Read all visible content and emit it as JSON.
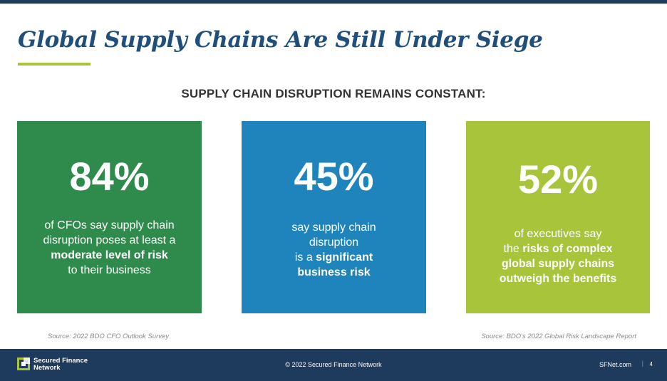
{
  "header": {
    "title": "Global Supply Chains Are Still Under Siege",
    "subtitle": "SUPPLY CHAIN DISRUPTION REMAINS CONSTANT:"
  },
  "cards": [
    {
      "stat": "84%",
      "line1": "of CFOs say supply chain",
      "line2": "disruption poses at least a",
      "line3_bold": "moderate level of risk",
      "line4": "to their business",
      "color": "#2e8b4b"
    },
    {
      "stat": "45%",
      "line1": "say supply chain",
      "line2": "disruption",
      "line3_prefix": "is a",
      "line3_bold": "significant",
      "line4_bold": "business risk",
      "color": "#1e84bb"
    },
    {
      "stat": "52%",
      "line1": "of executives say",
      "line2_prefix": "the",
      "line2_bold": "risks of complex",
      "line3_bold": "global supply chains",
      "line4_bold": "outweigh the benefits",
      "color": "#a8c43a"
    }
  ],
  "sources": {
    "left": "Source: 2022 BDO CFO Outlook Survey",
    "right": "Source: BDO's 2022 Global Risk Landscape Report"
  },
  "footer": {
    "logo_line1": "Secured Finance",
    "logo_line2": "Network",
    "copyright": "© 2022 Secured Finance Network",
    "site": "SFNet.com",
    "separator": "|",
    "page": "4"
  },
  "colors": {
    "navy": "#1e3a5c",
    "title_blue": "#1f4f7a",
    "accent_green": "#a8c43a"
  }
}
